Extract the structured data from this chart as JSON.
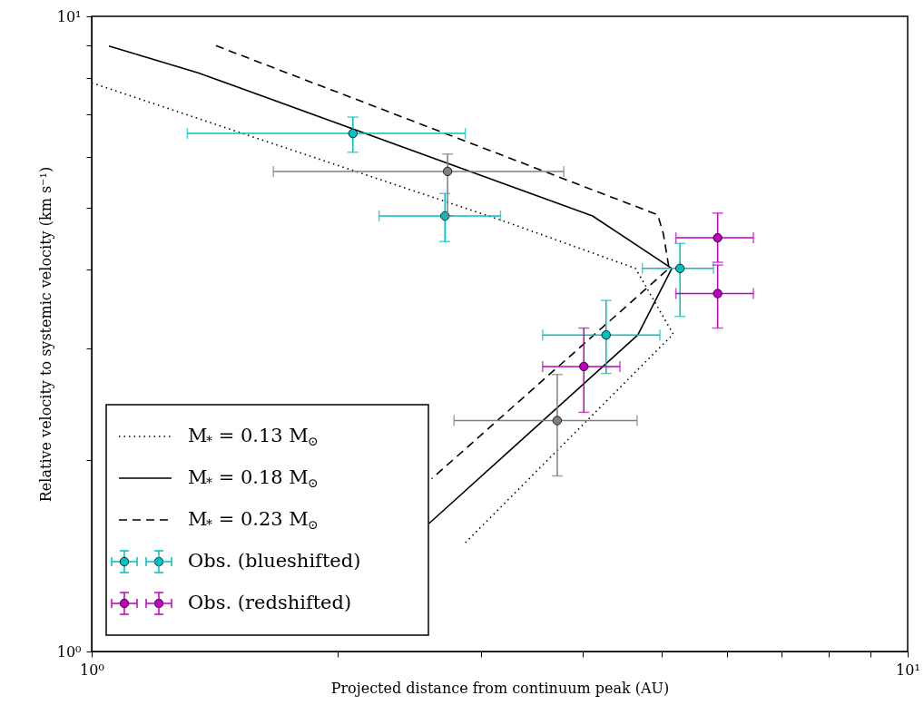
{
  "chart_data": {
    "type": "scatter",
    "xlabel": "Projected distance from continuum peak (AU)",
    "ylabel": "Relative velocity to systemic velocity (km s⁻¹)",
    "log": "xy",
    "grid": false,
    "legend": "bottom left",
    "xlim": [
      1,
      10
    ],
    "ylim": [
      1,
      10
    ],
    "xticks": [
      {
        "value": 1,
        "label": "10⁰"
      },
      {
        "value": 2,
        "label": null
      },
      {
        "value": 3,
        "label": null
      },
      {
        "value": 4,
        "label": null
      },
      {
        "value": 5,
        "label": null
      },
      {
        "value": 6,
        "label": null
      },
      {
        "value": 7,
        "label": null
      },
      {
        "value": 8,
        "label": null
      },
      {
        "value": 9,
        "label": null
      },
      {
        "value": 10,
        "label": "10¹"
      }
    ],
    "yticks": [
      {
        "value": 1,
        "label": "10⁰"
      },
      {
        "value": 2,
        "label": null
      },
      {
        "value": 3,
        "label": null
      },
      {
        "value": 4,
        "label": null
      },
      {
        "value": 5,
        "label": null
      },
      {
        "value": 6,
        "label": null
      },
      {
        "value": 7,
        "label": null
      },
      {
        "value": 8,
        "label": null
      },
      {
        "value": 9,
        "label": null
      },
      {
        "value": 10,
        "label": "10¹"
      }
    ],
    "series": [
      {
        "name": "M$_{*}$ = 0.13 M$_{⊙}$",
        "type": "line",
        "line_style": "dotted",
        "color": "#000000",
        "x": [
          1.0,
          3.2,
          4.64,
          5.16,
          2.85
        ],
        "values": [
          7.86,
          4.76,
          4.01,
          3.16,
          1.47
        ]
      },
      {
        "name": "M$_{*}$ = 0.18 M$_{⊙}$",
        "type": "line",
        "line_style": "solid",
        "color": "#000000",
        "x": [
          1.05,
          1.35,
          4.11,
          5.14,
          4.67,
          2.59
        ],
        "values": [
          8.98,
          8.15,
          4.85,
          4.01,
          3.15,
          1.59
        ]
      },
      {
        "name": "M$_{*}$ = 0.23 M$_{⊙}$",
        "type": "line",
        "line_style": "dashed",
        "color": "#000000",
        "x": [
          1.42,
          4.94,
          5.02,
          5.1,
          2.61
        ],
        "values": [
          8.99,
          4.87,
          4.54,
          4.01,
          1.87
        ]
      },
      {
        "name": "Obs. (blueshifted)",
        "marker": "circle",
        "color": "#00bfbf",
        "x": [
          2.09,
          2.71,
          5.26,
          4.27
        ],
        "values": [
          6.54,
          4.85,
          4.01,
          3.15
        ],
        "xerrors": [
          [
            1.31,
            2.87
          ],
          [
            2.25,
            3.17
          ],
          [
            4.73,
            5.78
          ],
          [
            3.57,
            4.97
          ]
        ],
        "errors": [
          [
            6.11,
            6.94
          ],
          [
            4.42,
            5.26
          ],
          [
            3.37,
            4.39
          ],
          [
            2.74,
            3.57
          ]
        ]
      },
      {
        "name": "Obs. (redshifted)",
        "marker": "circle",
        "color": "#bf00bf",
        "x": [
          5.85,
          5.85,
          4.01
        ],
        "values": [
          4.48,
          3.66,
          2.81
        ],
        "xerrors": [
          [
            5.2,
            6.47
          ],
          [
            5.2,
            6.47
          ],
          [
            3.57,
            4.44
          ]
        ],
        "errors": [
          [
            4.1,
            4.9
          ],
          [
            3.23,
            4.06
          ],
          [
            2.38,
            3.23
          ]
        ]
      },
      {
        "marker": "circle",
        "color": "#7f7f7f",
        "x": [
          2.73,
          3.72
        ],
        "values": [
          5.7,
          2.31
        ],
        "xerrors": [
          [
            1.67,
            3.79
          ],
          [
            2.78,
            4.66
          ]
        ],
        "errors": [
          [
            4.85,
            6.07
          ],
          [
            1.89,
            2.73
          ]
        ]
      }
    ]
  }
}
